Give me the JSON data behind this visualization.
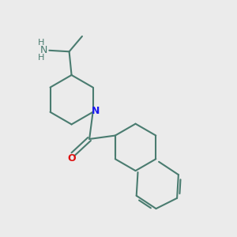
{
  "background_color": "#ebebeb",
  "bond_color": "#4a7c70",
  "N_color": "#1a1aee",
  "O_color": "#dd1111",
  "NH_color": "#4a7c70",
  "lw": 1.5,
  "fig_width": 3.0,
  "fig_height": 3.0,
  "dpi": 100,
  "xlim": [
    0,
    10
  ],
  "ylim": [
    0,
    10
  ]
}
